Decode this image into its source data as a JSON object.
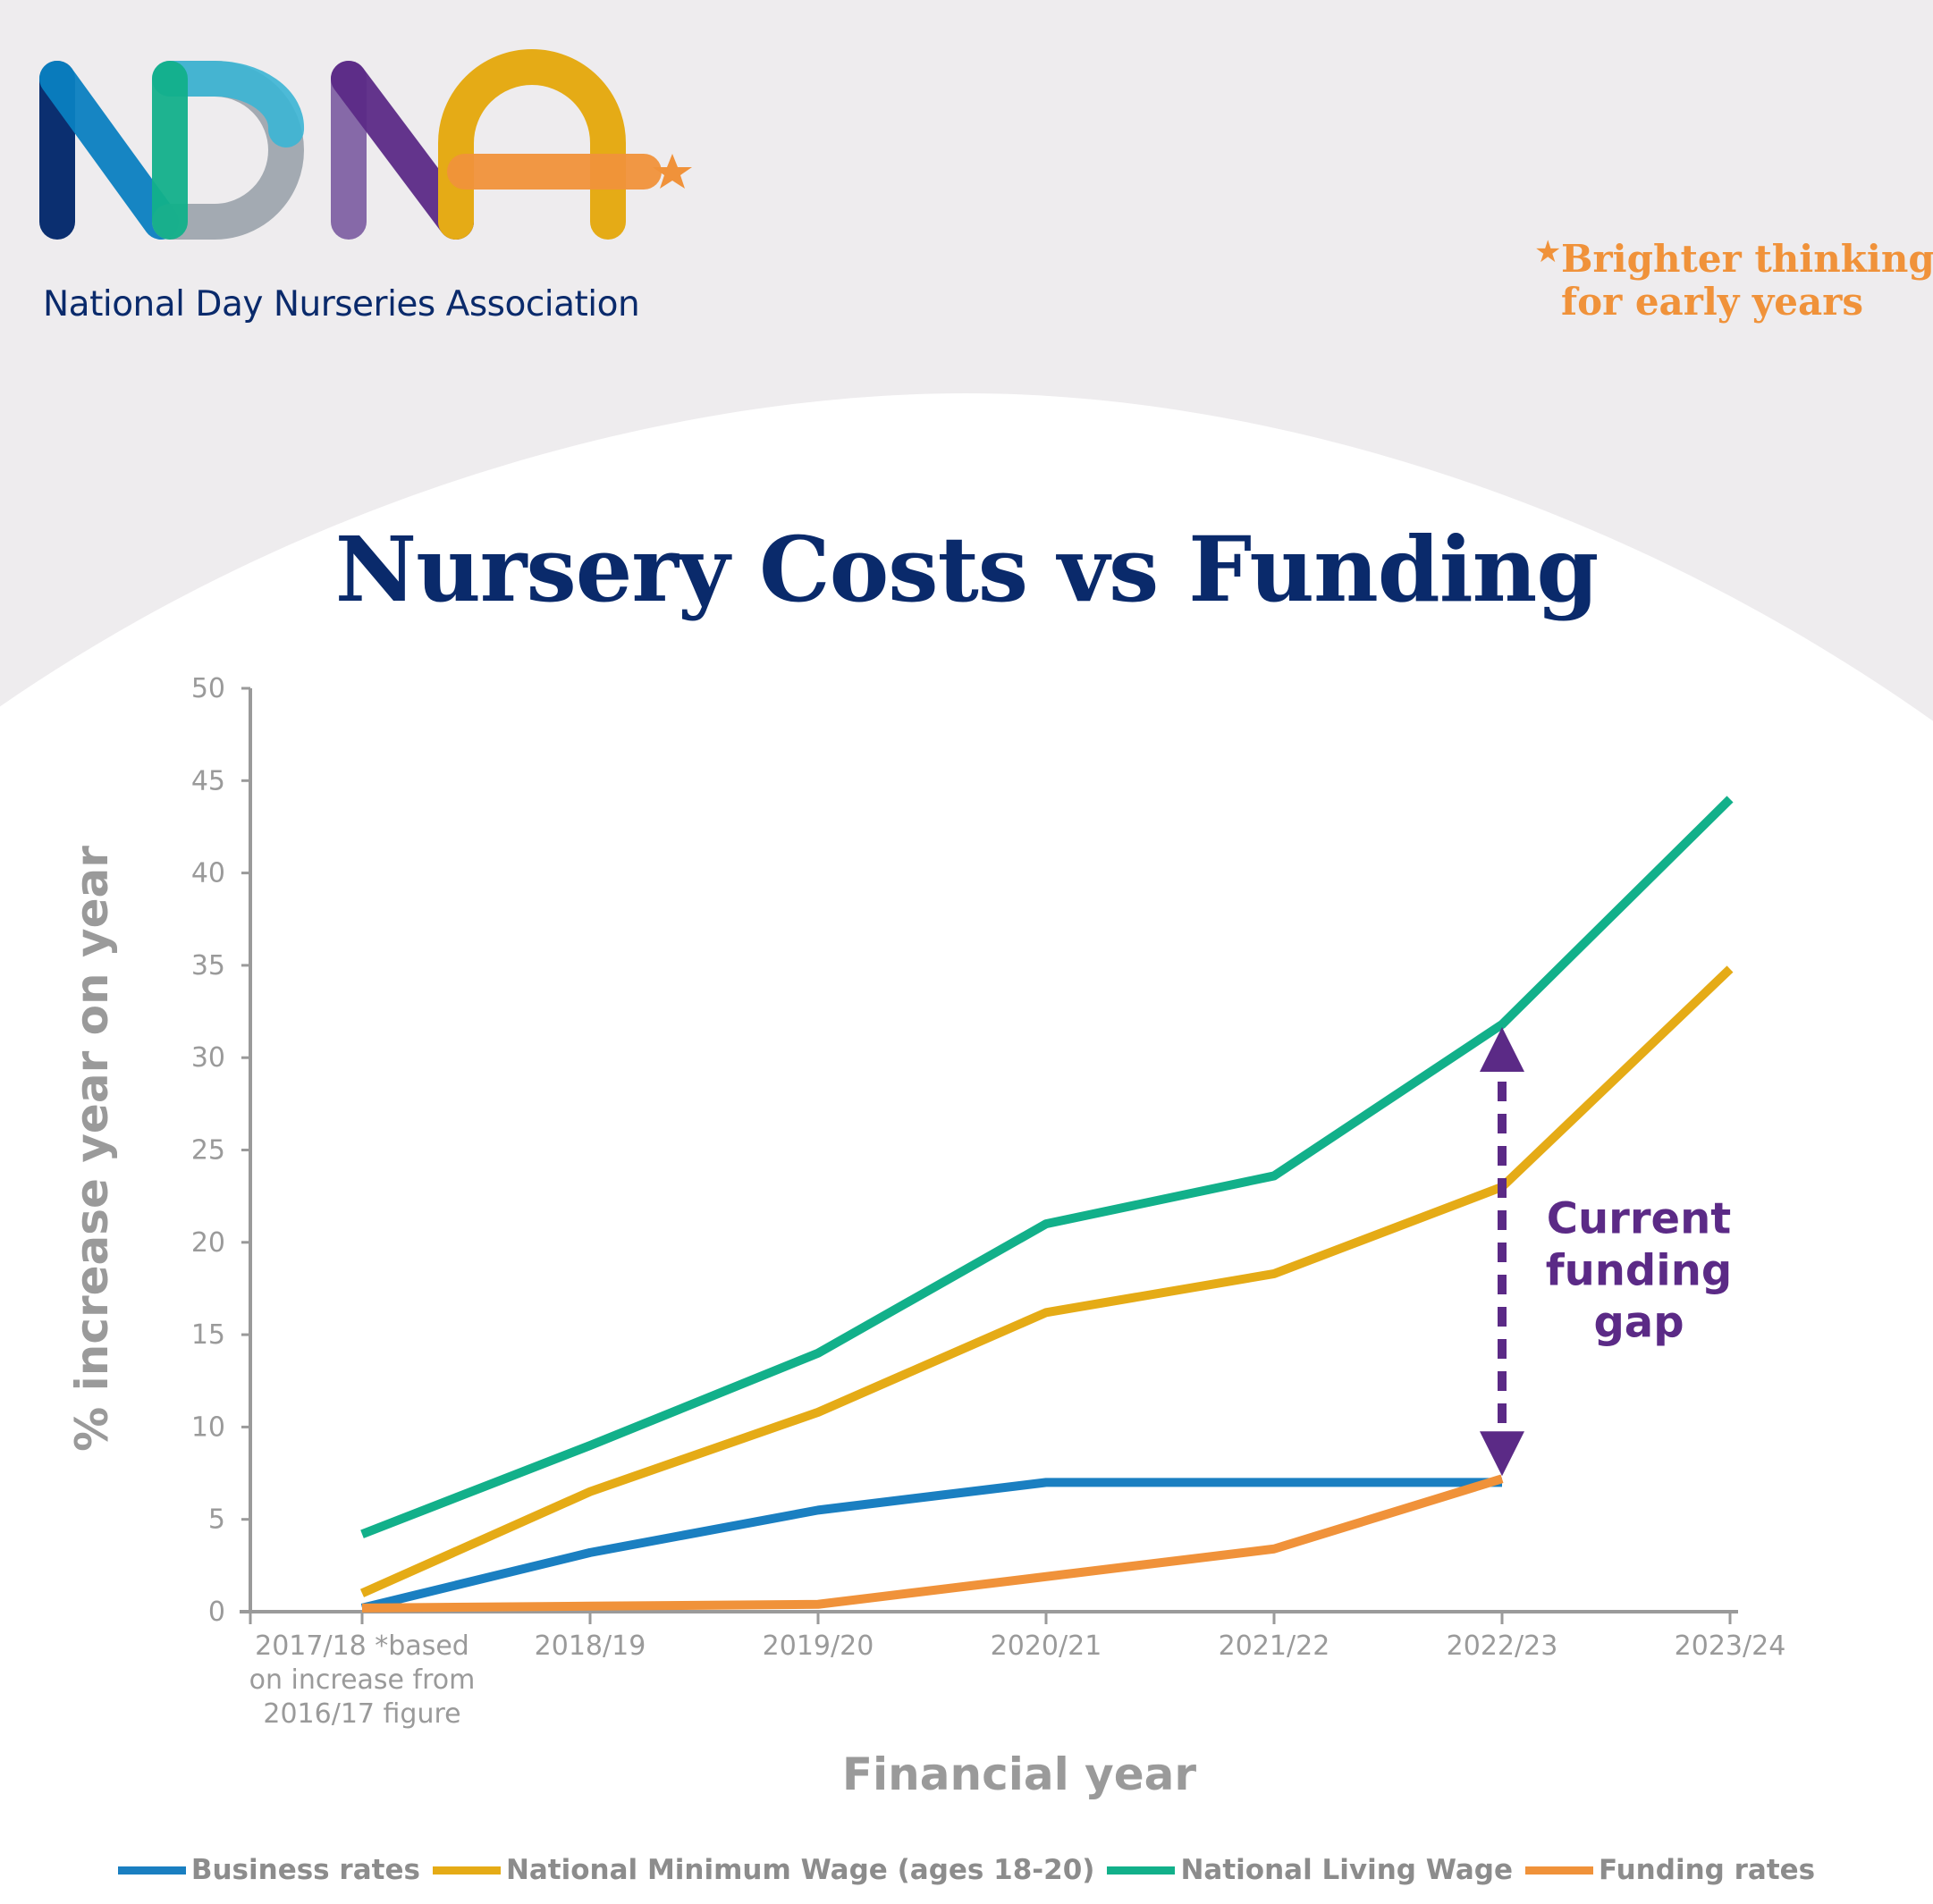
{
  "brand": {
    "logo_text": "NDNA",
    "org_name": "National Day Nurseries Association",
    "tagline_line1": "Brighter thinking",
    "tagline_line2": "for early years",
    "colors": {
      "navy": "#0a2a6b",
      "orange": "#f0923a",
      "background": "#eeecee"
    }
  },
  "chart_data": {
    "type": "line",
    "title": "Nursery Costs vs Funding",
    "xlabel": "Financial year",
    "ylabel": "% increase year on year",
    "ylim": [
      0,
      50
    ],
    "yticks": [
      "0",
      "5",
      "10",
      "15",
      "20",
      "25",
      "30",
      "35",
      "40",
      "45",
      "50"
    ],
    "categories": [
      "2017/18 *based on increase from 2016/17 figure",
      "2018/19",
      "2019/20",
      "2020/21",
      "2021/22",
      "2022/23",
      "2023/24"
    ],
    "category_lines": [
      [
        "2017/18 *based",
        "on increase from",
        "2016/17 figure"
      ],
      [
        "2018/19"
      ],
      [
        "2019/20"
      ],
      [
        "2020/21"
      ],
      [
        "2021/22"
      ],
      [
        "2022/23"
      ],
      [
        "2023/24"
      ]
    ],
    "series": [
      {
        "name": "Business rates",
        "color": "#1a7fc1",
        "values": [
          0.2,
          3.2,
          5.5,
          7.0,
          7.0,
          7.0,
          null
        ]
      },
      {
        "name": "National Minimum Wage (ages 18-20)",
        "color": "#e5ab16",
        "values": [
          1.0,
          6.5,
          10.8,
          16.2,
          18.3,
          23.0,
          34.8
        ]
      },
      {
        "name": "National Living Wage",
        "color": "#12b08a",
        "values": [
          4.2,
          9.0,
          14.0,
          21.0,
          23.6,
          31.8,
          44.0
        ]
      },
      {
        "name": "Funding rates",
        "color": "#f0923a",
        "values": [
          0.2,
          0.3,
          0.4,
          1.9,
          3.4,
          7.2,
          null
        ]
      }
    ],
    "annotation": {
      "lines": [
        "Current",
        "funding",
        "gap"
      ],
      "color": "#5b2a86",
      "category": "2022/23",
      "from_value": 7.2,
      "to_value": 31.8
    },
    "grid": false,
    "legend_position": "bottom"
  }
}
